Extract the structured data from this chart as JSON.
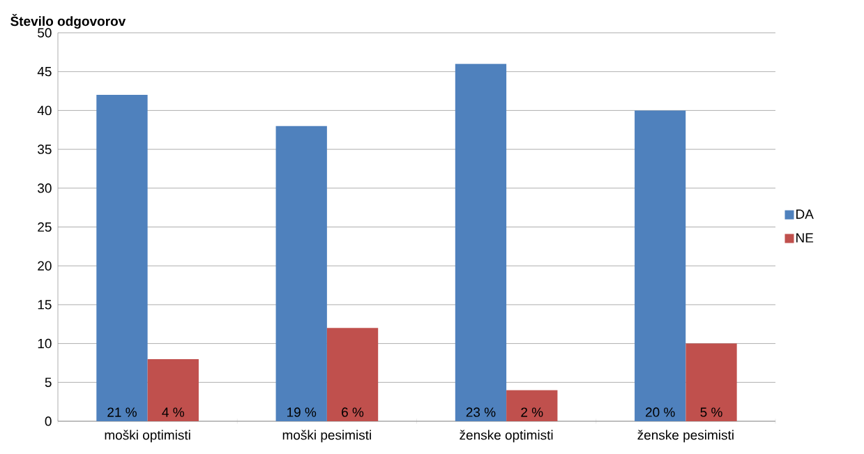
{
  "chart_data": {
    "type": "bar",
    "ylabel": "Število odgovorov",
    "categories": [
      "moški optimisti",
      "moški pesimisti",
      "ženske optimisti",
      "ženske pesimisti"
    ],
    "series": [
      {
        "name": "DA",
        "color": "#4f81bd",
        "values": [
          42,
          38,
          46,
          40
        ]
      },
      {
        "name": "NE",
        "color": "#c0504d",
        "values": [
          8,
          12,
          4,
          10
        ]
      }
    ],
    "annotations": [
      {
        "text": "21 %",
        "x": "moški optimisti",
        "y": 0
      },
      {
        "text": "4 %",
        "x": "moški optimisti",
        "y": 0
      },
      {
        "text": "19 %",
        "x": "moški pesimisti",
        "y": 0
      },
      {
        "text": "6 %",
        "x": "moški pesimisti",
        "y": 0
      },
      {
        "text": "23 %",
        "x": "ženske optimisti",
        "y": 0
      },
      {
        "text": "2 %",
        "x": "ženske optimisti",
        "y": 0
      },
      {
        "text": "20 %",
        "x": "ženske pesimisti",
        "y": 0
      },
      {
        "text": "5 %",
        "x": "ženske pesimisti",
        "y": 0
      }
    ],
    "ylim": [
      0,
      50
    ],
    "yticks": [
      0,
      5,
      10,
      15,
      20,
      25,
      30,
      35,
      40,
      45,
      50
    ],
    "grid": "y",
    "legend": "right"
  }
}
